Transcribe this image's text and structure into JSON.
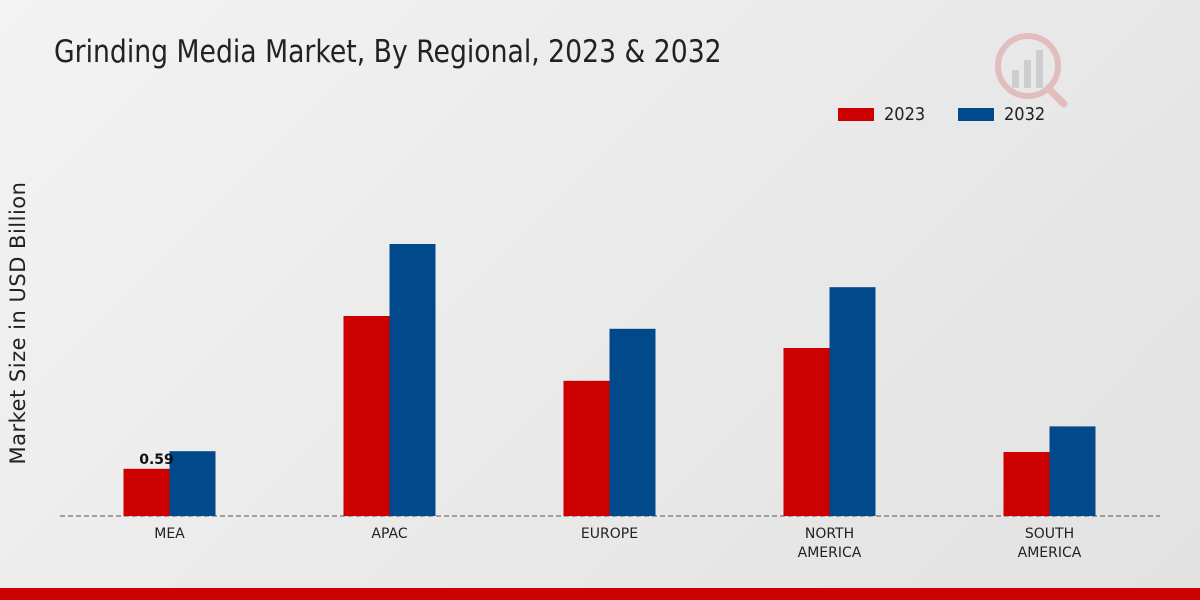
{
  "chart_data": {
    "type": "bar",
    "title": "Grinding Media Market, By Regional, 2023 & 2032",
    "xlabel": "",
    "ylabel": "Market Size in USD Billion",
    "categories": [
      [
        "MEA"
      ],
      [
        "APAC"
      ],
      [
        "EUROPE"
      ],
      [
        "NORTH",
        "AMERICA"
      ],
      [
        "SOUTH",
        "AMERICA"
      ]
    ],
    "series": [
      {
        "name": "2023",
        "color": "#cc0000",
        "values": [
          0.59,
          2.5,
          1.69,
          2.1,
          0.8
        ]
      },
      {
        "name": "2032",
        "color": "#004a8c",
        "values": [
          0.81,
          3.4,
          2.34,
          2.86,
          1.12
        ]
      }
    ],
    "data_labels": [
      {
        "series": 0,
        "index": 0,
        "text": "0.59"
      }
    ],
    "ylim": [
      0,
      5
    ],
    "grid": false,
    "legend": "top-right"
  },
  "accent_color": "#cc0000"
}
